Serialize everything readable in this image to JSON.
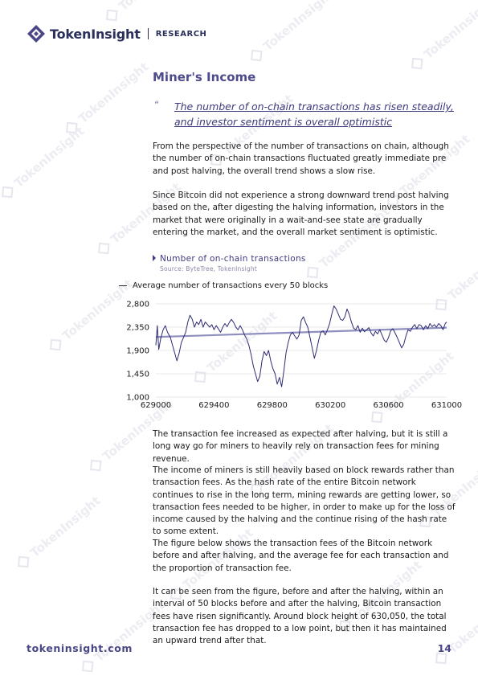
{
  "header": {
    "brand": "TokenInsight",
    "section": "RESEARCH"
  },
  "watermark": {
    "text": "TokenInsight"
  },
  "heading": "Miner's Income",
  "quote_mark": "“",
  "quote": "The number of on-chain transactions has risen steadily, and investor sentiment is overall optimistic",
  "paragraphs_top": [
    "From the perspective of the number of transactions on chain, although the number of on-chain transactions fluctuated greatly immediate pre and post halving, the overall trend shows a slow rise.",
    "Since Bitcoin did not experience a strong downward trend post halving based on the, after digesting the halving information, investors in the market that were originally in a wait-and-see state are gradually entering the market, and the overall market sentiment is optimistic."
  ],
  "chart_title": "Number of on-chain transactions",
  "chart_source": "Source: ByteTree, TokenInsight",
  "chart_data": {
    "type": "line",
    "legend": "Average number of transactions every 50 blocks",
    "xlim": [
      629000,
      631000
    ],
    "ylim": [
      1000,
      2800
    ],
    "x_ticks": [
      "629000",
      "629400",
      "629800",
      "630200",
      "630600",
      "631000"
    ],
    "y_ticks": [
      "2,800",
      "2,350",
      "1,900",
      "1,450",
      "1,000"
    ],
    "series": [
      {
        "name": "Average number of transactions every 50 blocks",
        "points": [
          [
            629000,
            2000
          ],
          [
            629010,
            2380
          ],
          [
            629020,
            1920
          ],
          [
            629035,
            2150
          ],
          [
            629050,
            2300
          ],
          [
            629065,
            2380
          ],
          [
            629080,
            2250
          ],
          [
            629100,
            2150
          ],
          [
            629115,
            2000
          ],
          [
            629130,
            1850
          ],
          [
            629145,
            1700
          ],
          [
            629160,
            1850
          ],
          [
            629175,
            2050
          ],
          [
            629190,
            2150
          ],
          [
            629205,
            2250
          ],
          [
            629220,
            2450
          ],
          [
            629235,
            2580
          ],
          [
            629250,
            2500
          ],
          [
            629265,
            2350
          ],
          [
            629280,
            2450
          ],
          [
            629295,
            2400
          ],
          [
            629310,
            2500
          ],
          [
            629325,
            2350
          ],
          [
            629340,
            2450
          ],
          [
            629355,
            2400
          ],
          [
            629370,
            2350
          ],
          [
            629385,
            2400
          ],
          [
            629400,
            2300
          ],
          [
            629415,
            2380
          ],
          [
            629430,
            2320
          ],
          [
            629445,
            2250
          ],
          [
            629460,
            2350
          ],
          [
            629475,
            2420
          ],
          [
            629490,
            2360
          ],
          [
            629505,
            2440
          ],
          [
            629520,
            2500
          ],
          [
            629535,
            2440
          ],
          [
            629550,
            2350
          ],
          [
            629565,
            2300
          ],
          [
            629580,
            2380
          ],
          [
            629595,
            2300
          ],
          [
            629610,
            2200
          ],
          [
            629625,
            2120
          ],
          [
            629640,
            2000
          ],
          [
            629655,
            1820
          ],
          [
            629670,
            1600
          ],
          [
            629685,
            1450
          ],
          [
            629700,
            1300
          ],
          [
            629715,
            1400
          ],
          [
            629730,
            1700
          ],
          [
            629745,
            1880
          ],
          [
            629760,
            1800
          ],
          [
            629775,
            1900
          ],
          [
            629790,
            1700
          ],
          [
            629805,
            1550
          ],
          [
            629820,
            1450
          ],
          [
            629835,
            1250
          ],
          [
            629850,
            1380
          ],
          [
            629865,
            1200
          ],
          [
            629880,
            1500
          ],
          [
            629895,
            1850
          ],
          [
            629910,
            2050
          ],
          [
            629925,
            2200
          ],
          [
            629940,
            2250
          ],
          [
            629955,
            2180
          ],
          [
            629970,
            2120
          ],
          [
            629985,
            2200
          ],
          [
            630000,
            2480
          ],
          [
            630015,
            2550
          ],
          [
            630030,
            2440
          ],
          [
            630045,
            2350
          ],
          [
            630060,
            2150
          ],
          [
            630075,
            1950
          ],
          [
            630090,
            1750
          ],
          [
            630105,
            1900
          ],
          [
            630120,
            2100
          ],
          [
            630135,
            2250
          ],
          [
            630150,
            2280
          ],
          [
            630165,
            2200
          ],
          [
            630180,
            2300
          ],
          [
            630195,
            2420
          ],
          [
            630210,
            2600
          ],
          [
            630225,
            2760
          ],
          [
            630240,
            2700
          ],
          [
            630255,
            2600
          ],
          [
            630270,
            2500
          ],
          [
            630285,
            2480
          ],
          [
            630300,
            2550
          ],
          [
            630315,
            2700
          ],
          [
            630330,
            2600
          ],
          [
            630345,
            2450
          ],
          [
            630360,
            2330
          ],
          [
            630375,
            2300
          ],
          [
            630390,
            2380
          ],
          [
            630405,
            2250
          ],
          [
            630420,
            2330
          ],
          [
            630435,
            2260
          ],
          [
            630450,
            2300
          ],
          [
            630465,
            2340
          ],
          [
            630480,
            2240
          ],
          [
            630495,
            2180
          ],
          [
            630510,
            2270
          ],
          [
            630525,
            2220
          ],
          [
            630540,
            2300
          ],
          [
            630555,
            2200
          ],
          [
            630570,
            2100
          ],
          [
            630585,
            2060
          ],
          [
            630600,
            2150
          ],
          [
            630615,
            2280
          ],
          [
            630630,
            2320
          ],
          [
            630645,
            2240
          ],
          [
            630660,
            2150
          ],
          [
            630675,
            2050
          ],
          [
            630690,
            1950
          ],
          [
            630705,
            2020
          ],
          [
            630720,
            2180
          ],
          [
            630735,
            2300
          ],
          [
            630750,
            2270
          ],
          [
            630765,
            2350
          ],
          [
            630780,
            2400
          ],
          [
            630795,
            2320
          ],
          [
            630810,
            2400
          ],
          [
            630825,
            2380
          ],
          [
            630840,
            2300
          ],
          [
            630855,
            2380
          ],
          [
            630870,
            2320
          ],
          [
            630885,
            2420
          ],
          [
            630900,
            2360
          ],
          [
            630915,
            2400
          ],
          [
            630930,
            2350
          ],
          [
            630945,
            2420
          ],
          [
            630960,
            2380
          ],
          [
            630975,
            2300
          ],
          [
            630990,
            2420
          ],
          [
            631000,
            2450
          ]
        ],
        "color": "#2e2b73"
      },
      {
        "name": "trend",
        "points": [
          [
            629000,
            2160
          ],
          [
            631000,
            2340
          ]
        ],
        "color": "#8f8fbf"
      }
    ]
  },
  "paragraphs_bottom": [
    "The transaction fee increased as expected after halving, but it is still a long way go for miners to heavily rely on transaction fees for mining revenue.",
    "The income of miners is still heavily based on block rewards rather than transaction fees. As the hash rate of the entire Bitcoin network continues to rise in the long term, mining rewards are getting lower, so transaction fees needed to be higher, in order to make up for the loss of income caused by the halving and the continue rising of the hash rate to some extent.",
    "The figure below shows the transaction fees of the Bitcoin network before and after halving, and the average fee for each transaction and the proportion of transaction fee.",
    "It can be seen from the figure, before and after the halving, within an interval of 50 blocks before and after the halving, Bitcoin transaction fees have risen significantly. Around block height of 630,050, the total transaction fee has dropped to a low point, but then it has maintained an upward trend after that."
  ],
  "footer": {
    "url": "tokeninsight.com",
    "page": "14"
  }
}
